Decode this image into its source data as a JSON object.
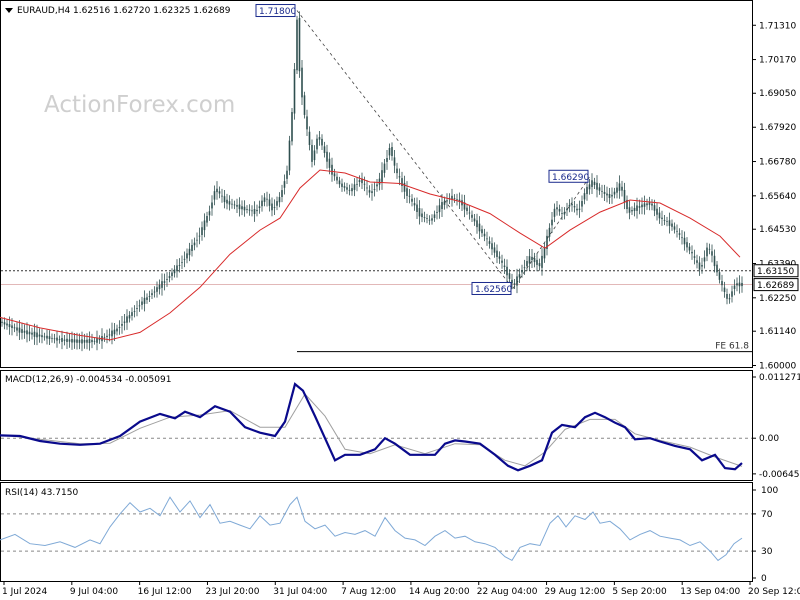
{
  "header": {
    "symbol_line": "EURAUD,H4  1.62516  1.62720  1.62325  1.62689"
  },
  "watermark": "ActionForex.com",
  "colors": {
    "candle": "#2f4f4f",
    "ma": "#d82a2a",
    "macd": "#0a0a8c",
    "signal": "#a0a0a0",
    "rsi": "#7fa9d6",
    "frame": "#000000",
    "hline": "#000000",
    "dotted": "#888888",
    "label_border": "#1a2a8c"
  },
  "chart_data": [
    {
      "type": "candlestick",
      "title": "EURAUD,H4",
      "ylim": [
        1.5995,
        1.7205
      ],
      "y_ticks": [
        "1.71310",
        "1.70170",
        "1.69050",
        "1.67920",
        "1.66780",
        "1.65640",
        "1.64530",
        "1.63390",
        "1.62250",
        "1.61140",
        "1.60000"
      ],
      "x_ticks": [
        "1 Jul 2024",
        "9 Jul 04:00",
        "16 Jul 12:00",
        "23 Jul 20:00",
        "31 Jul 04:00",
        "7 Aug 12:00",
        "14 Aug 20:00",
        "22 Aug 04:00",
        "29 Aug 12:00",
        "5 Sep 20:00",
        "13 Sep 04:00",
        "20 Sep 12:00"
      ],
      "price_path": [
        [
          0,
          1.6145
        ],
        [
          20,
          1.6115
        ],
        [
          40,
          1.6098
        ],
        [
          60,
          1.6085
        ],
        [
          80,
          1.608
        ],
        [
          95,
          1.6082
        ],
        [
          105,
          1.6095
        ],
        [
          115,
          1.6115
        ],
        [
          125,
          1.615
        ],
        [
          140,
          1.6205
        ],
        [
          155,
          1.625
        ],
        [
          170,
          1.63
        ],
        [
          185,
          1.636
        ],
        [
          200,
          1.644
        ],
        [
          210,
          1.652
        ],
        [
          215,
          1.659
        ],
        [
          225,
          1.6545
        ],
        [
          240,
          1.6525
        ],
        [
          255,
          1.651
        ],
        [
          265,
          1.656
        ],
        [
          272,
          1.652
        ],
        [
          280,
          1.656
        ],
        [
          287,
          1.665
        ],
        [
          293,
          1.688
        ],
        [
          297,
          1.715
        ],
        [
          300,
          1.695
        ],
        [
          305,
          1.682
        ],
        [
          312,
          1.668
        ],
        [
          318,
          1.677
        ],
        [
          325,
          1.67
        ],
        [
          332,
          1.664
        ],
        [
          340,
          1.66
        ],
        [
          350,
          1.658
        ],
        [
          360,
          1.662
        ],
        [
          370,
          1.657
        ],
        [
          380,
          1.662
        ],
        [
          390,
          1.673
        ],
        [
          395,
          1.665
        ],
        [
          405,
          1.658
        ],
        [
          420,
          1.65
        ],
        [
          430,
          1.648
        ],
        [
          440,
          1.653
        ],
        [
          450,
          1.656
        ],
        [
          460,
          1.6545
        ],
        [
          470,
          1.65
        ],
        [
          480,
          1.645
        ],
        [
          490,
          1.64
        ],
        [
          500,
          1.635
        ],
        [
          508,
          1.63
        ],
        [
          513,
          1.6262
        ],
        [
          520,
          1.631
        ],
        [
          530,
          1.636
        ],
        [
          540,
          1.633
        ],
        [
          548,
          1.644
        ],
        [
          555,
          1.653
        ],
        [
          562,
          1.65
        ],
        [
          570,
          1.654
        ],
        [
          578,
          1.651
        ],
        [
          585,
          1.658
        ],
        [
          592,
          1.661
        ],
        [
          600,
          1.658
        ],
        [
          610,
          1.656
        ],
        [
          620,
          1.66
        ],
        [
          628,
          1.651
        ],
        [
          640,
          1.653
        ],
        [
          650,
          1.654
        ],
        [
          660,
          1.649
        ],
        [
          670,
          1.647
        ],
        [
          680,
          1.643
        ],
        [
          690,
          1.638
        ],
        [
          700,
          1.632
        ],
        [
          708,
          1.64
        ],
        [
          714,
          1.634
        ],
        [
          720,
          1.628
        ],
        [
          728,
          1.621
        ],
        [
          734,
          1.627
        ],
        [
          742,
          1.6269
        ]
      ],
      "moving_average": [
        [
          0,
          1.616
        ],
        [
          40,
          1.6125
        ],
        [
          80,
          1.61
        ],
        [
          110,
          1.6085
        ],
        [
          140,
          1.611
        ],
        [
          170,
          1.6175
        ],
        [
          200,
          1.626
        ],
        [
          230,
          1.637
        ],
        [
          260,
          1.645
        ],
        [
          280,
          1.649
        ],
        [
          300,
          1.659
        ],
        [
          320,
          1.665
        ],
        [
          345,
          1.664
        ],
        [
          370,
          1.661
        ],
        [
          400,
          1.6605
        ],
        [
          430,
          1.657
        ],
        [
          460,
          1.6545
        ],
        [
          490,
          1.6505
        ],
        [
          520,
          1.644
        ],
        [
          545,
          1.639
        ],
        [
          570,
          1.645
        ],
        [
          600,
          1.651
        ],
        [
          630,
          1.655
        ],
        [
          660,
          1.654
        ],
        [
          690,
          1.649
        ],
        [
          720,
          1.643
        ],
        [
          740,
          1.636
        ]
      ],
      "swing_lines": [
        {
          "from": [
            297,
            1.718
          ],
          "to": [
            513,
            1.6256
          ]
        },
        {
          "from": [
            513,
            1.6256
          ],
          "to": [
            590,
            1.6629
          ]
        }
      ],
      "price_labels": [
        {
          "text": "1.71800",
          "x": 297,
          "y": 1.718,
          "side": "left"
        },
        {
          "text": "1.66290",
          "x": 590,
          "y": 1.6629,
          "side": "left"
        },
        {
          "text": "1.62560",
          "x": 513,
          "y": 1.6256,
          "side": "left"
        }
      ],
      "hlines": [
        {
          "y": 1.6315,
          "style": "dotted",
          "label": "1.63150",
          "label_type": "box"
        },
        {
          "y": 1.62689,
          "style": "solid-thin",
          "label": "1.62689",
          "label_type": "box"
        },
        {
          "y": 1.6046,
          "style": "solid",
          "label": "FE 61.8",
          "label_type": "text",
          "x_start": 297
        }
      ]
    },
    {
      "type": "line",
      "title": "MACD(12,26,9) -0.004534 -0.005091",
      "ylim": [
        -0.0072,
        0.0118
      ],
      "y_ticks": [
        {
          "label": "0.011271",
          "value": 0.011271
        },
        {
          "label": "0.00",
          "value": 0.0
        },
        {
          "label": "-0.006453",
          "value": -0.006453
        }
      ],
      "zero_line": 0.0,
      "series": [
        {
          "role": "macd",
          "points": [
            [
              0,
              0.0005
            ],
            [
              20,
              0.0004
            ],
            [
              40,
              -0.0005
            ],
            [
              60,
              -0.001
            ],
            [
              80,
              -0.0012
            ],
            [
              100,
              -0.001
            ],
            [
              120,
              0.0004
            ],
            [
              140,
              0.003
            ],
            [
              160,
              0.0044
            ],
            [
              175,
              0.0036
            ],
            [
              185,
              0.0048
            ],
            [
              200,
              0.0038
            ],
            [
              215,
              0.0058
            ],
            [
              230,
              0.0048
            ],
            [
              245,
              0.002
            ],
            [
              260,
              0.001
            ],
            [
              275,
              0.0004
            ],
            [
              285,
              0.003
            ],
            [
              295,
              0.0098
            ],
            [
              303,
              0.0086
            ],
            [
              315,
              0.004
            ],
            [
              325,
              0.0
            ],
            [
              335,
              -0.004
            ],
            [
              345,
              -0.003
            ],
            [
              360,
              -0.003
            ],
            [
              375,
              -0.002
            ],
            [
              385,
              0.0
            ],
            [
              395,
              -0.001
            ],
            [
              410,
              -0.003
            ],
            [
              425,
              -0.003
            ],
            [
              435,
              -0.003
            ],
            [
              445,
              -0.001
            ],
            [
              455,
              -0.0004
            ],
            [
              465,
              -0.0006
            ],
            [
              480,
              -0.001
            ],
            [
              495,
              -0.003
            ],
            [
              508,
              -0.005
            ],
            [
              518,
              -0.0058
            ],
            [
              530,
              -0.005
            ],
            [
              542,
              -0.004
            ],
            [
              552,
              0.001
            ],
            [
              562,
              0.0024
            ],
            [
              575,
              0.002
            ],
            [
              585,
              0.0038
            ],
            [
              595,
              0.0046
            ],
            [
              605,
              0.0038
            ],
            [
              615,
              0.0028
            ],
            [
              625,
              0.002
            ],
            [
              635,
              -0.0002
            ],
            [
              650,
              0.0
            ],
            [
              660,
              -0.0006
            ],
            [
              675,
              -0.0014
            ],
            [
              690,
              -0.002
            ],
            [
              702,
              -0.004
            ],
            [
              715,
              -0.003
            ],
            [
              725,
              -0.0054
            ],
            [
              735,
              -0.0056
            ],
            [
              742,
              -0.0045
            ]
          ]
        },
        {
          "role": "signal",
          "points": [
            [
              0,
              0.0006
            ],
            [
              40,
              -0.0002
            ],
            [
              80,
              -0.001
            ],
            [
              110,
              -0.0009
            ],
            [
              140,
              0.0018
            ],
            [
              170,
              0.0038
            ],
            [
              200,
              0.0042
            ],
            [
              230,
              0.005
            ],
            [
              260,
              0.002
            ],
            [
              285,
              0.002
            ],
            [
              305,
              0.008
            ],
            [
              325,
              0.004
            ],
            [
              345,
              -0.002
            ],
            [
              370,
              -0.0028
            ],
            [
              395,
              -0.0012
            ],
            [
              425,
              -0.0028
            ],
            [
              455,
              -0.001
            ],
            [
              480,
              -0.0012
            ],
            [
              505,
              -0.004
            ],
            [
              525,
              -0.005
            ],
            [
              545,
              -0.0025
            ],
            [
              565,
              0.0016
            ],
            [
              590,
              0.0034
            ],
            [
              615,
              0.0034
            ],
            [
              635,
              0.0008
            ],
            [
              660,
              -0.0004
            ],
            [
              690,
              -0.0016
            ],
            [
              715,
              -0.0034
            ],
            [
              742,
              -0.0051
            ]
          ]
        }
      ]
    },
    {
      "type": "line",
      "title": "RSI(14) 43.7150",
      "ylim": [
        0,
        100
      ],
      "y_ticks": [
        {
          "label": "100",
          "value": 100
        },
        {
          "label": "70",
          "value": 70
        },
        {
          "label": "30",
          "value": 30
        },
        {
          "label": "0",
          "value": 0
        }
      ],
      "levels": [
        70,
        30
      ],
      "series": [
        {
          "role": "rsi",
          "points": [
            [
              0,
              42
            ],
            [
              15,
              48
            ],
            [
              30,
              38
            ],
            [
              45,
              36
            ],
            [
              60,
              40
            ],
            [
              75,
              34
            ],
            [
              90,
              42
            ],
            [
              100,
              38
            ],
            [
              110,
              56
            ],
            [
              120,
              70
            ],
            [
              130,
              82
            ],
            [
              140,
              72
            ],
            [
              150,
              76
            ],
            [
              160,
              68
            ],
            [
              170,
              88
            ],
            [
              180,
              72
            ],
            [
              190,
              84
            ],
            [
              200,
              66
            ],
            [
              210,
              80
            ],
            [
              220,
              60
            ],
            [
              230,
              62
            ],
            [
              240,
              58
            ],
            [
              250,
              54
            ],
            [
              260,
              68
            ],
            [
              270,
              58
            ],
            [
              280,
              60
            ],
            [
              290,
              80
            ],
            [
              297,
              88
            ],
            [
              305,
              62
            ],
            [
              315,
              54
            ],
            [
              325,
              58
            ],
            [
              335,
              46
            ],
            [
              345,
              50
            ],
            [
              355,
              48
            ],
            [
              365,
              52
            ],
            [
              375,
              46
            ],
            [
              385,
              66
            ],
            [
              395,
              52
            ],
            [
              405,
              44
            ],
            [
              415,
              42
            ],
            [
              425,
              36
            ],
            [
              435,
              46
            ],
            [
              445,
              52
            ],
            [
              455,
              44
            ],
            [
              465,
              46
            ],
            [
              475,
              40
            ],
            [
              485,
              38
            ],
            [
              495,
              34
            ],
            [
              505,
              24
            ],
            [
              512,
              20
            ],
            [
              520,
              34
            ],
            [
              530,
              38
            ],
            [
              540,
              36
            ],
            [
              550,
              60
            ],
            [
              558,
              68
            ],
            [
              566,
              56
            ],
            [
              575,
              68
            ],
            [
              585,
              64
            ],
            [
              593,
              72
            ],
            [
              600,
              60
            ],
            [
              610,
              62
            ],
            [
              620,
              54
            ],
            [
              630,
              42
            ],
            [
              640,
              48
            ],
            [
              650,
              52
            ],
            [
              660,
              46
            ],
            [
              670,
              44
            ],
            [
              680,
              42
            ],
            [
              690,
              36
            ],
            [
              700,
              40
            ],
            [
              710,
              30
            ],
            [
              718,
              20
            ],
            [
              726,
              26
            ],
            [
              734,
              38
            ],
            [
              742,
              44
            ]
          ]
        }
      ]
    }
  ]
}
